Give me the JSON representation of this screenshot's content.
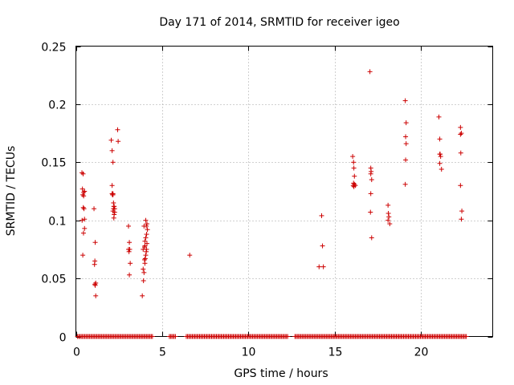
{
  "chart_data": {
    "type": "scatter",
    "title": "Day 171 of 2014, SRMTID for receiver igeo",
    "xlabel": "GPS time / hours",
    "ylabel": "SRMTID / TECUs",
    "xlim": [
      0,
      24.17
    ],
    "ylim": [
      0,
      0.25
    ],
    "x_ticks": [
      0,
      5,
      10,
      15,
      20
    ],
    "x_tick_labels": [
      "0",
      "5",
      "10",
      "15",
      "20"
    ],
    "y_ticks": [
      0,
      0.05,
      0.1,
      0.15,
      0.2,
      0.25
    ],
    "y_tick_labels": [
      "0",
      "0.05",
      "0.1",
      "0.15",
      "0.2",
      "0.25"
    ],
    "grid": true,
    "marker": "+",
    "color": "#cc0000",
    "series": [
      {
        "name": "SRMTID",
        "x": [
          0.35,
          0.42,
          0.38,
          0.45,
          0.4,
          0.47,
          0.43,
          0.36,
          0.5,
          0.44,
          0.4,
          0.5,
          0.45,
          0.5,
          1.05,
          1.12,
          1.1,
          1.08,
          1.15,
          1.12,
          1.1,
          1.15,
          2.05,
          2.1,
          2.15,
          2.1,
          2.15,
          2.12,
          2.18,
          2.2,
          2.18,
          2.15,
          2.22,
          2.25,
          2.2,
          2.22,
          2.25,
          2.1,
          2.15,
          2.42,
          2.45,
          3.05,
          3.1,
          3.12,
          3.08,
          3.15,
          3.1,
          3.05,
          3.85,
          3.92,
          3.95,
          3.9,
          4.0,
          3.98,
          4.02,
          4.05,
          4.08,
          4.1,
          4.12,
          4.0,
          4.05,
          4.1,
          4.15,
          4.08,
          4.12,
          4.05,
          3.95,
          4.0,
          3.98,
          3.9,
          6.6,
          14.1,
          14.25,
          14.3,
          14.35,
          16.05,
          16.1,
          16.12,
          16.15,
          16.1,
          16.08,
          16.12,
          16.15,
          16.2,
          17.05,
          17.1,
          17.12,
          17.15,
          17.1,
          17.08,
          17.15,
          17.1,
          18.1,
          18.12,
          18.15,
          18.1,
          18.2,
          19.1,
          19.15,
          19.12,
          19.15,
          19.12,
          19.1,
          21.05,
          21.1,
          21.12,
          21.15,
          21.1,
          21.2,
          21.1,
          22.3,
          22.35,
          22.32,
          22.3,
          22.38,
          22.35,
          22.3
        ],
        "y": [
          0.141,
          0.14,
          0.127,
          0.124,
          0.122,
          0.11,
          0.111,
          0.1,
          0.093,
          0.089,
          0.07,
          0.125,
          0.121,
          0.101,
          0.11,
          0.081,
          0.065,
          0.062,
          0.046,
          0.044,
          0.045,
          0.035,
          0.169,
          0.16,
          0.15,
          0.13,
          0.123,
          0.122,
          0.115,
          0.112,
          0.11,
          0.108,
          0.105,
          0.107,
          0.102,
          0.112,
          0.11,
          0.123,
          0.122,
          0.178,
          0.168,
          0.095,
          0.081,
          0.075,
          0.073,
          0.063,
          0.053,
          0.075,
          0.035,
          0.048,
          0.055,
          0.058,
          0.063,
          0.066,
          0.067,
          0.07,
          0.073,
          0.075,
          0.08,
          0.082,
          0.085,
          0.088,
          0.092,
          0.095,
          0.097,
          0.1,
          0.095,
          0.078,
          0.077,
          0.075,
          0.07,
          0.06,
          0.104,
          0.078,
          0.06,
          0.155,
          0.15,
          0.145,
          0.138,
          0.132,
          0.13,
          0.129,
          0.131,
          0.13,
          0.228,
          0.145,
          0.142,
          0.135,
          0.123,
          0.107,
          0.085,
          0.14,
          0.113,
          0.106,
          0.103,
          0.1,
          0.097,
          0.203,
          0.184,
          0.172,
          0.166,
          0.152,
          0.131,
          0.189,
          0.17,
          0.157,
          0.155,
          0.149,
          0.144,
          0.157,
          0.18,
          0.175,
          0.158,
          0.13,
          0.108,
          0.101,
          0.174
        ]
      }
    ],
    "zero_band_x_start": 0.1,
    "zero_band_x_end": 22.7,
    "zero_band_gaps": [
      [
        4.5,
        5.4
      ],
      [
        5.8,
        6.4
      ],
      [
        12.3,
        12.7
      ]
    ]
  }
}
